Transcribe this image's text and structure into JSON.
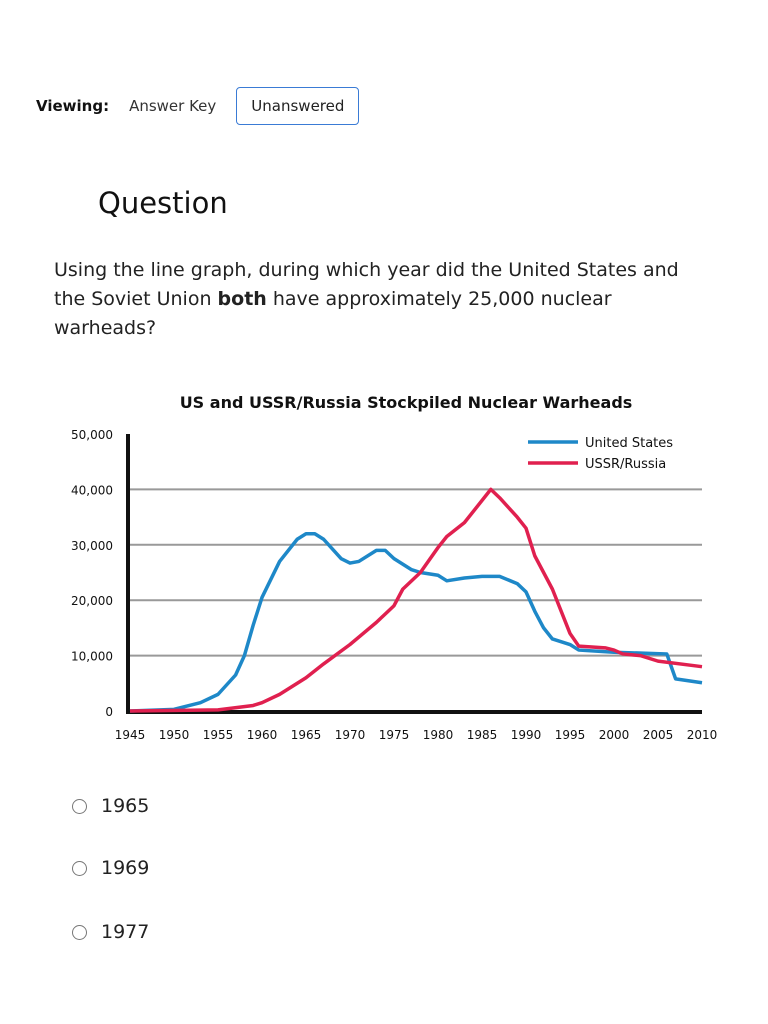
{
  "viewing": {
    "label": "Viewing:",
    "answer_key": "Answer Key",
    "unanswered": "Unanswered"
  },
  "question": {
    "title": "Question",
    "text_before": "Using the line graph, during which year did the United States and the Soviet Union ",
    "text_bold": "both",
    "text_after": " have approximately 25,000 nuclear warheads?"
  },
  "choices": [
    {
      "label": "1965"
    },
    {
      "label": "1969"
    },
    {
      "label": "1977"
    }
  ],
  "chart_data": {
    "type": "line",
    "title": "US and USSR/Russia Stockpiled Nuclear Warheads",
    "xlabel": "",
    "ylabel": "",
    "xlim": [
      1945,
      2010
    ],
    "ylim": [
      0,
      50000
    ],
    "xticks": [
      "1945",
      "1950",
      "1955",
      "1960",
      "1965",
      "1970",
      "1975",
      "1980",
      "1985",
      "1990",
      "1995",
      "2000",
      "2005",
      "2010"
    ],
    "yticks": [
      "0",
      "10,000",
      "20,000",
      "30,000",
      "40,000",
      "50,000"
    ],
    "grid": true,
    "legend": "top-right",
    "series": [
      {
        "name": "United States",
        "color": "#1e88c8",
        "points": [
          [
            1945,
            0
          ],
          [
            1950,
            300
          ],
          [
            1953,
            1500
          ],
          [
            1955,
            3000
          ],
          [
            1957,
            6500
          ],
          [
            1958,
            10000
          ],
          [
            1959,
            15500
          ],
          [
            1960,
            20500
          ],
          [
            1962,
            27000
          ],
          [
            1964,
            31000
          ],
          [
            1965,
            32000
          ],
          [
            1966,
            32000
          ],
          [
            1967,
            31000
          ],
          [
            1969,
            27500
          ],
          [
            1970,
            26700
          ],
          [
            1971,
            27000
          ],
          [
            1973,
            29000
          ],
          [
            1974,
            29000
          ],
          [
            1975,
            27500
          ],
          [
            1977,
            25500
          ],
          [
            1978,
            25000
          ],
          [
            1980,
            24500
          ],
          [
            1981,
            23500
          ],
          [
            1983,
            24000
          ],
          [
            1985,
            24300
          ],
          [
            1987,
            24300
          ],
          [
            1989,
            23000
          ],
          [
            1990,
            21500
          ],
          [
            1991,
            18000
          ],
          [
            1992,
            15000
          ],
          [
            1993,
            13000
          ],
          [
            1995,
            12000
          ],
          [
            1996,
            11000
          ],
          [
            2000,
            10600
          ],
          [
            2006,
            10300
          ],
          [
            2007,
            5800
          ],
          [
            2010,
            5100
          ]
        ]
      },
      {
        "name": "USSR/Russia",
        "color": "#e0204f",
        "points": [
          [
            1945,
            0
          ],
          [
            1955,
            200
          ],
          [
            1959,
            1000
          ],
          [
            1960,
            1500
          ],
          [
            1962,
            3000
          ],
          [
            1965,
            6000
          ],
          [
            1967,
            8500
          ],
          [
            1970,
            12000
          ],
          [
            1973,
            16000
          ],
          [
            1975,
            19000
          ],
          [
            1976,
            22000
          ],
          [
            1978,
            25000
          ],
          [
            1980,
            29500
          ],
          [
            1981,
            31500
          ],
          [
            1983,
            34000
          ],
          [
            1986,
            40000
          ],
          [
            1987,
            38500
          ],
          [
            1989,
            35000
          ],
          [
            1990,
            33000
          ],
          [
            1991,
            28000
          ],
          [
            1993,
            22000
          ],
          [
            1995,
            14000
          ],
          [
            1996,
            11700
          ],
          [
            1999,
            11400
          ],
          [
            2000,
            11000
          ],
          [
            2001,
            10300
          ],
          [
            2003,
            10000
          ],
          [
            2005,
            9000
          ],
          [
            2009,
            8200
          ],
          [
            2010,
            8000
          ]
        ]
      }
    ]
  }
}
